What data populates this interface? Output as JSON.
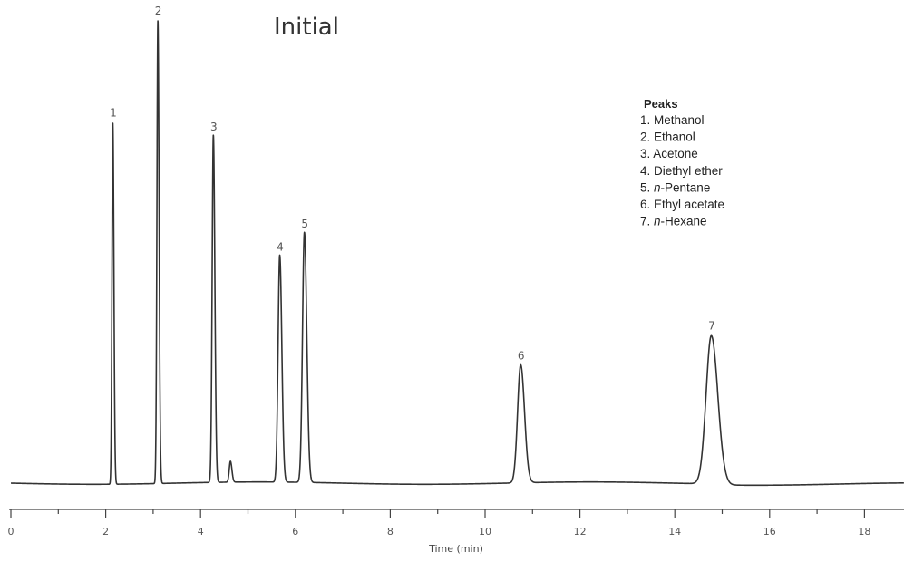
{
  "chart_data": {
    "type": "line",
    "title": "Initial",
    "xlabel": "Time (min)",
    "ylabel": "",
    "xlim": [
      0,
      19
    ],
    "x_ticks": [
      0,
      2,
      4,
      6,
      8,
      10,
      12,
      14,
      16,
      18
    ],
    "grid": false,
    "legend": {
      "title": "Peaks",
      "placement": "top-right",
      "items": [
        {
          "number": "1.",
          "name": "Methanol",
          "italic_prefix": ""
        },
        {
          "number": "2.",
          "name": "Ethanol",
          "italic_prefix": ""
        },
        {
          "number": "3.",
          "name": "Acetone",
          "italic_prefix": ""
        },
        {
          "number": "4.",
          "name": "Diethyl ether",
          "italic_prefix": ""
        },
        {
          "number": "5.",
          "name": "-Pentane",
          "italic_prefix": "n"
        },
        {
          "number": "6.",
          "name": "Ethyl acetate",
          "italic_prefix": ""
        },
        {
          "number": "7.",
          "name": "-Hexane",
          "italic_prefix": "n"
        }
      ]
    },
    "peaks": [
      {
        "label": "1",
        "time": 2.15,
        "height": 0.78,
        "width": 0.018
      },
      {
        "label": "2",
        "time": 3.1,
        "height": 1.0,
        "width": 0.02
      },
      {
        "label": "3",
        "time": 4.27,
        "height": 0.75,
        "width": 0.025
      },
      {
        "label": "",
        "time": 4.63,
        "height": 0.045,
        "width": 0.025
      },
      {
        "label": "4",
        "time": 5.67,
        "height": 0.49,
        "width": 0.035
      },
      {
        "label": "5",
        "time": 6.19,
        "height": 0.54,
        "width": 0.04
      },
      {
        "label": "6",
        "time": 10.75,
        "height": 0.255,
        "width": 0.065
      },
      {
        "label": "7",
        "time": 14.77,
        "height": 0.32,
        "width": 0.11
      }
    ],
    "line_color": "#333333"
  }
}
